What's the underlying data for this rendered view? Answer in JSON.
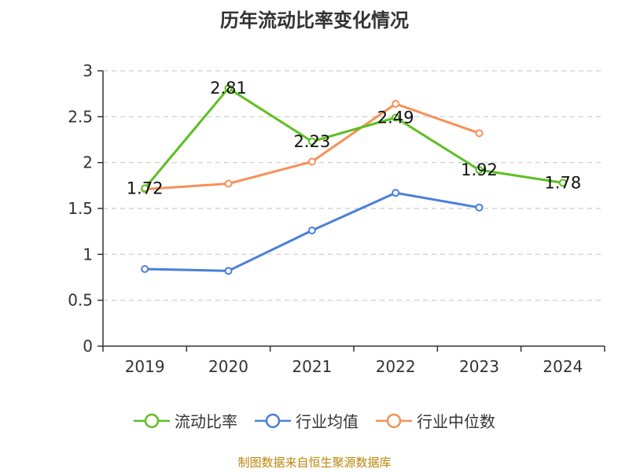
{
  "chart_data": {
    "type": "line",
    "title": "历年流动比率变化情况",
    "categories": [
      "2019",
      "2020",
      "2021",
      "2022",
      "2023",
      "2024"
    ],
    "ylim": [
      0,
      3
    ],
    "yticks": [
      "0",
      "0.5",
      "1",
      "1.5",
      "2",
      "2.5",
      "3"
    ],
    "ytick_values": [
      0,
      0.5,
      1,
      1.5,
      2,
      2.5,
      3
    ],
    "grid": true,
    "legend_position": "bottom",
    "series": [
      {
        "name": "流动比率",
        "color": "#5cbf21",
        "values": [
          1.72,
          2.81,
          2.23,
          2.49,
          1.92,
          1.78
        ],
        "labels": [
          "1.72",
          "2.81",
          "2.23",
          "2.49",
          "1.92",
          "1.78"
        ]
      },
      {
        "name": "行业均值",
        "color": "#4a7fdc",
        "values": [
          0.84,
          0.82,
          1.26,
          1.67,
          1.51,
          null
        ]
      },
      {
        "name": "行业中位数",
        "color": "#f59159",
        "values": [
          1.71,
          1.77,
          2.01,
          2.64,
          2.32,
          null
        ]
      }
    ]
  },
  "source": "制图数据来自恒生聚源数据库"
}
